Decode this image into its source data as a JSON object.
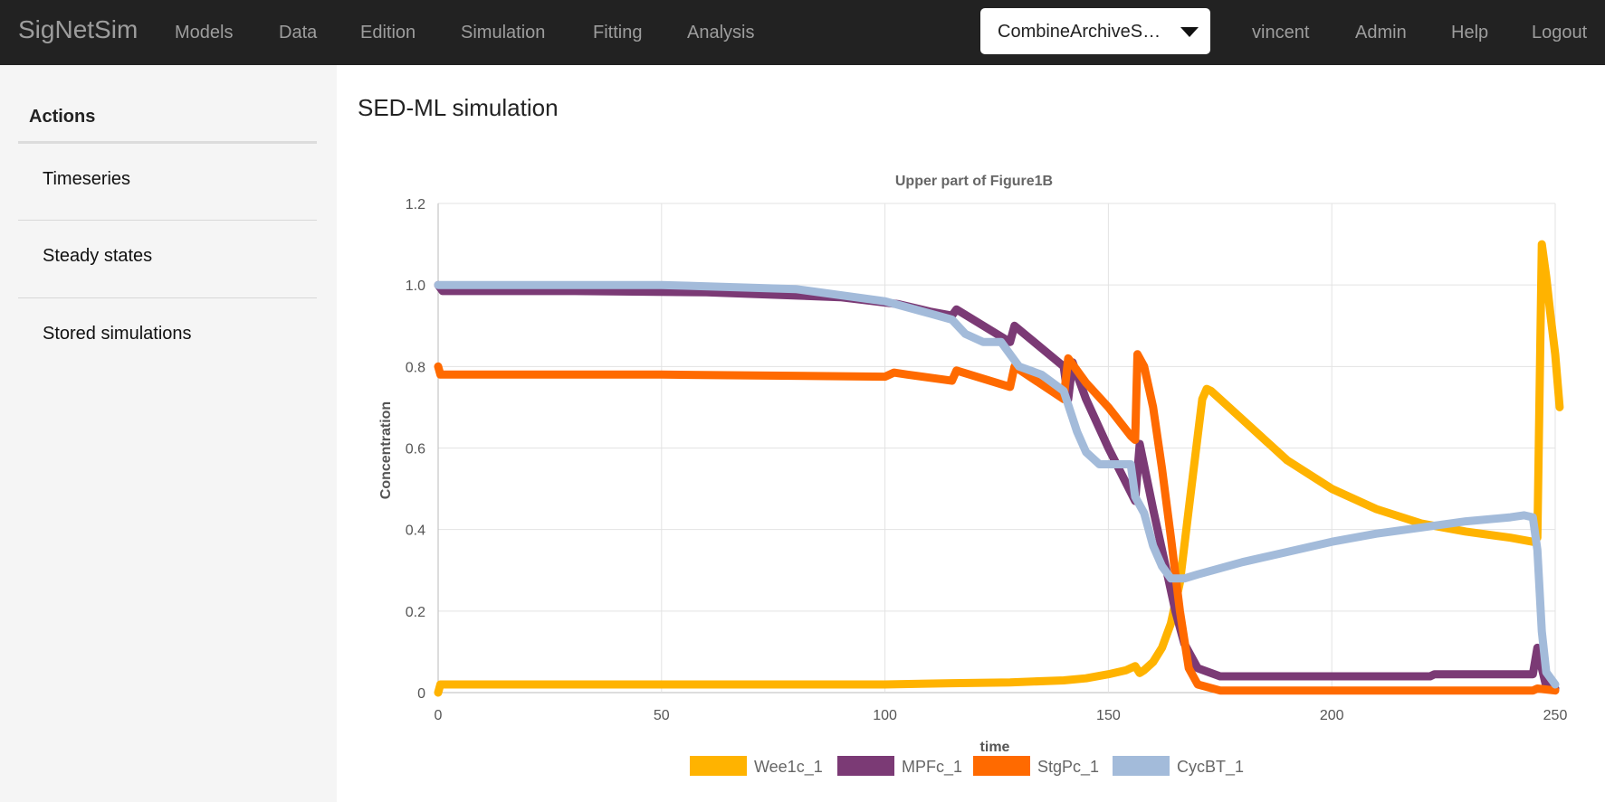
{
  "navbar": {
    "brand": "SigNetSim",
    "items": [
      "Models",
      "Data",
      "Edition",
      "Simulation",
      "Fitting",
      "Analysis"
    ],
    "project_select": "CombineArchiveS…",
    "user_items": [
      "vincent",
      "Admin",
      "Help",
      "Logout"
    ]
  },
  "sidebar": {
    "heading": "Actions",
    "items": [
      "Timeseries",
      "Steady states",
      "Stored simulations"
    ]
  },
  "page_title": "SED-ML simulation",
  "chart_data": {
    "type": "line",
    "title": "Upper part of Figure1B",
    "xlabel": "time",
    "ylabel": "Concentration",
    "xlim": [
      0,
      250
    ],
    "ylim": [
      0,
      1.2
    ],
    "x_ticks": [
      "0",
      "50",
      "100",
      "150",
      "200",
      "250"
    ],
    "y_ticks": [
      "0",
      "0.2",
      "0.4",
      "0.6",
      "0.8",
      "1.0",
      "1.2"
    ],
    "grid": true,
    "legend_position": "bottom",
    "series": [
      {
        "name": "Wee1c_1",
        "color": "#ffb300",
        "points": [
          [
            0,
            0.0
          ],
          [
            0.5,
            0.02
          ],
          [
            50,
            0.02
          ],
          [
            100,
            0.02
          ],
          [
            115,
            0.023
          ],
          [
            128,
            0.025
          ],
          [
            140,
            0.03
          ],
          [
            145,
            0.035
          ],
          [
            150,
            0.045
          ],
          [
            154,
            0.055
          ],
          [
            156,
            0.065
          ],
          [
            157,
            0.048
          ],
          [
            158,
            0.055
          ],
          [
            160,
            0.075
          ],
          [
            162,
            0.11
          ],
          [
            164,
            0.17
          ],
          [
            166,
            0.27
          ],
          [
            168,
            0.45
          ],
          [
            170,
            0.63
          ],
          [
            171,
            0.72
          ],
          [
            172,
            0.745
          ],
          [
            173,
            0.74
          ],
          [
            180,
            0.67
          ],
          [
            190,
            0.57
          ],
          [
            200,
            0.5
          ],
          [
            210,
            0.45
          ],
          [
            220,
            0.415
          ],
          [
            230,
            0.395
          ],
          [
            240,
            0.38
          ],
          [
            245,
            0.37
          ],
          [
            246,
            0.38
          ],
          [
            247,
            1.1
          ],
          [
            248,
            1.02
          ],
          [
            249,
            0.92
          ],
          [
            250,
            0.83
          ],
          [
            251,
            0.7
          ]
        ]
      },
      {
        "name": "MPFc_1",
        "color": "#7b3a75",
        "points": [
          [
            0,
            1.0
          ],
          [
            1,
            0.985
          ],
          [
            30,
            0.985
          ],
          [
            60,
            0.982
          ],
          [
            90,
            0.97
          ],
          [
            103,
            0.953
          ],
          [
            110,
            0.935
          ],
          [
            115,
            0.925
          ],
          [
            116,
            0.94
          ],
          [
            128,
            0.86
          ],
          [
            129,
            0.9
          ],
          [
            140,
            0.8
          ],
          [
            141,
            0.72
          ],
          [
            142,
            0.81
          ],
          [
            145,
            0.72
          ],
          [
            150,
            0.6
          ],
          [
            156,
            0.47
          ],
          [
            157,
            0.61
          ],
          [
            160,
            0.45
          ],
          [
            163,
            0.3
          ],
          [
            165,
            0.2
          ],
          [
            167,
            0.12
          ],
          [
            170,
            0.06
          ],
          [
            175,
            0.04
          ],
          [
            200,
            0.04
          ],
          [
            222,
            0.04
          ],
          [
            223,
            0.045
          ],
          [
            245,
            0.045
          ],
          [
            246,
            0.11
          ],
          [
            247,
            0.06
          ],
          [
            248,
            0.015
          ],
          [
            250,
            0.01
          ]
        ]
      },
      {
        "name": "StgPc_1",
        "color": "#ff6a00",
        "points": [
          [
            0,
            0.8
          ],
          [
            0.5,
            0.78
          ],
          [
            50,
            0.78
          ],
          [
            100,
            0.775
          ],
          [
            102,
            0.785
          ],
          [
            105,
            0.78
          ],
          [
            115,
            0.765
          ],
          [
            116,
            0.79
          ],
          [
            128,
            0.75
          ],
          [
            129,
            0.8
          ],
          [
            140,
            0.72
          ],
          [
            141,
            0.82
          ],
          [
            145,
            0.76
          ],
          [
            150,
            0.7
          ],
          [
            155,
            0.63
          ],
          [
            156,
            0.62
          ],
          [
            156.5,
            0.83
          ],
          [
            158,
            0.8
          ],
          [
            160,
            0.7
          ],
          [
            162,
            0.55
          ],
          [
            164,
            0.38
          ],
          [
            166,
            0.2
          ],
          [
            168,
            0.06
          ],
          [
            170,
            0.02
          ],
          [
            175,
            0.005
          ],
          [
            200,
            0.005
          ],
          [
            245,
            0.005
          ],
          [
            246,
            0.01
          ],
          [
            250,
            0.005
          ]
        ]
      },
      {
        "name": "CycBT_1",
        "color": "#a3bbda",
        "points": [
          [
            0,
            1.0
          ],
          [
            50,
            1.0
          ],
          [
            80,
            0.99
          ],
          [
            100,
            0.96
          ],
          [
            110,
            0.93
          ],
          [
            115,
            0.915
          ],
          [
            118,
            0.88
          ],
          [
            122,
            0.86
          ],
          [
            126,
            0.86
          ],
          [
            130,
            0.8
          ],
          [
            135,
            0.78
          ],
          [
            140,
            0.74
          ],
          [
            143,
            0.64
          ],
          [
            145,
            0.59
          ],
          [
            148,
            0.56
          ],
          [
            152,
            0.56
          ],
          [
            155,
            0.56
          ],
          [
            156,
            0.48
          ],
          [
            158,
            0.44
          ],
          [
            160,
            0.36
          ],
          [
            162,
            0.31
          ],
          [
            164,
            0.28
          ],
          [
            167,
            0.28
          ],
          [
            170,
            0.29
          ],
          [
            180,
            0.32
          ],
          [
            190,
            0.345
          ],
          [
            200,
            0.37
          ],
          [
            210,
            0.39
          ],
          [
            220,
            0.405
          ],
          [
            230,
            0.42
          ],
          [
            240,
            0.43
          ],
          [
            243,
            0.435
          ],
          [
            245,
            0.43
          ],
          [
            246,
            0.35
          ],
          [
            247,
            0.15
          ],
          [
            248,
            0.05
          ],
          [
            250,
            0.02
          ]
        ]
      }
    ]
  }
}
